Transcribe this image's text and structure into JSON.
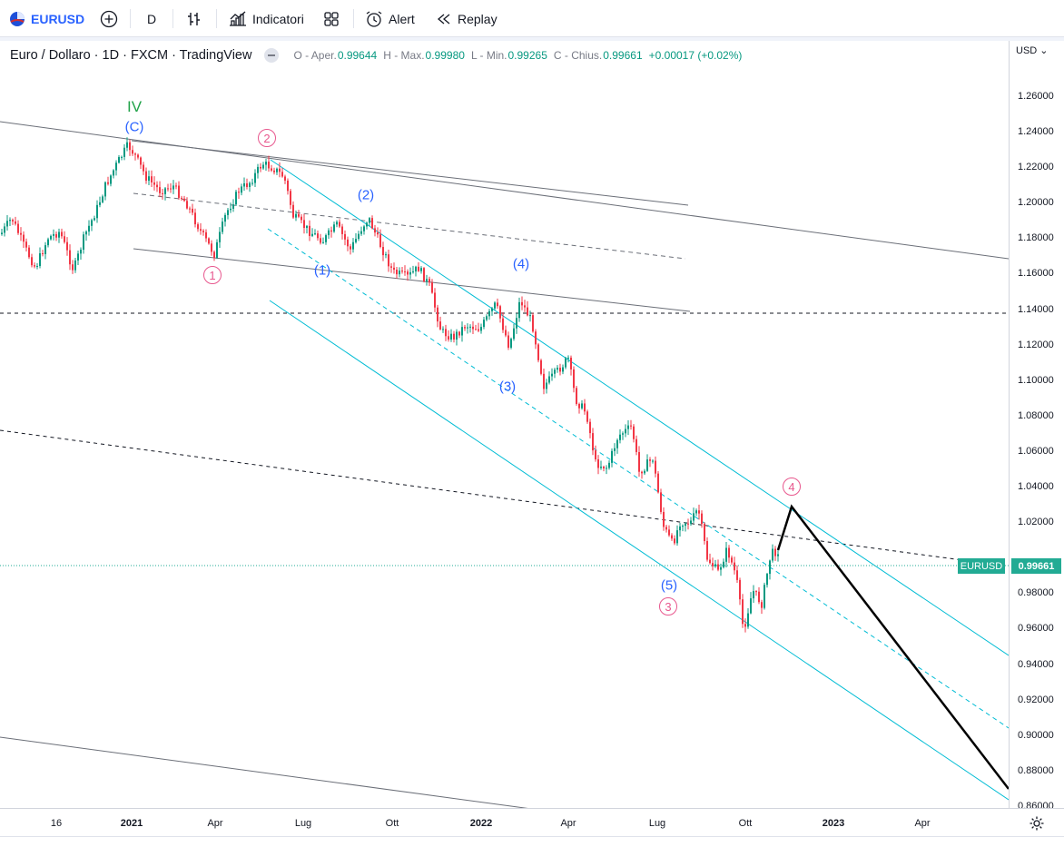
{
  "toolbar": {
    "symbol": "EURUSD",
    "interval": "D",
    "indicators_label": "Indicatori",
    "alert_label": "Alert",
    "replay_label": "Replay"
  },
  "legend": {
    "title": "Euro / Dollaro · 1D · FXCM · TradingView",
    "open_label": "O - Aper.",
    "open": "0.99644",
    "high_label": "H - Max.",
    "high": "0.99980",
    "low_label": "L - Min.",
    "low": "0.99265",
    "close_label": "C - Chius.",
    "close": "0.99661",
    "change": "+0.00017 (+0.02%)"
  },
  "price_axis": {
    "currency": "USD",
    "ticks": [
      "1.26000",
      "1.24000",
      "1.22000",
      "1.20000",
      "1.18000",
      "1.16000",
      "1.14000",
      "1.12000",
      "1.10000",
      "1.08000",
      "1.06000",
      "1.04000",
      "1.02000",
      "0.98000",
      "0.96000",
      "0.94000",
      "0.92000",
      "0.90000",
      "0.88000",
      "0.86000"
    ]
  },
  "time_axis": {
    "labels": [
      {
        "text": "16",
        "bold": false
      },
      {
        "text": "2021",
        "bold": true
      },
      {
        "text": "Apr",
        "bold": false
      },
      {
        "text": "Lug",
        "bold": false
      },
      {
        "text": "Ott",
        "bold": false
      },
      {
        "text": "2022",
        "bold": true
      },
      {
        "text": "Apr",
        "bold": false
      },
      {
        "text": "Lug",
        "bold": false
      },
      {
        "text": "Ott",
        "bold": false
      },
      {
        "text": "2023",
        "bold": true
      },
      {
        "text": "Apr",
        "bold": false
      }
    ]
  },
  "last_price": {
    "symbol": "EURUSD",
    "price": "0.99661",
    "color": "#22ab94"
  },
  "waves": {
    "iv": "IV",
    "c": "(C)",
    "p1": "(1)",
    "p2": "(2)",
    "p3": "(3)",
    "p4": "(4)",
    "p5": "(5)",
    "c1": "1",
    "c2": "2",
    "c3": "3",
    "c4": "4"
  },
  "colors": {
    "up": "#089981",
    "down": "#f23645",
    "channel": "#00bcd4",
    "wave_blue": "#2962ff",
    "wave_pink": "#e8588e"
  }
}
